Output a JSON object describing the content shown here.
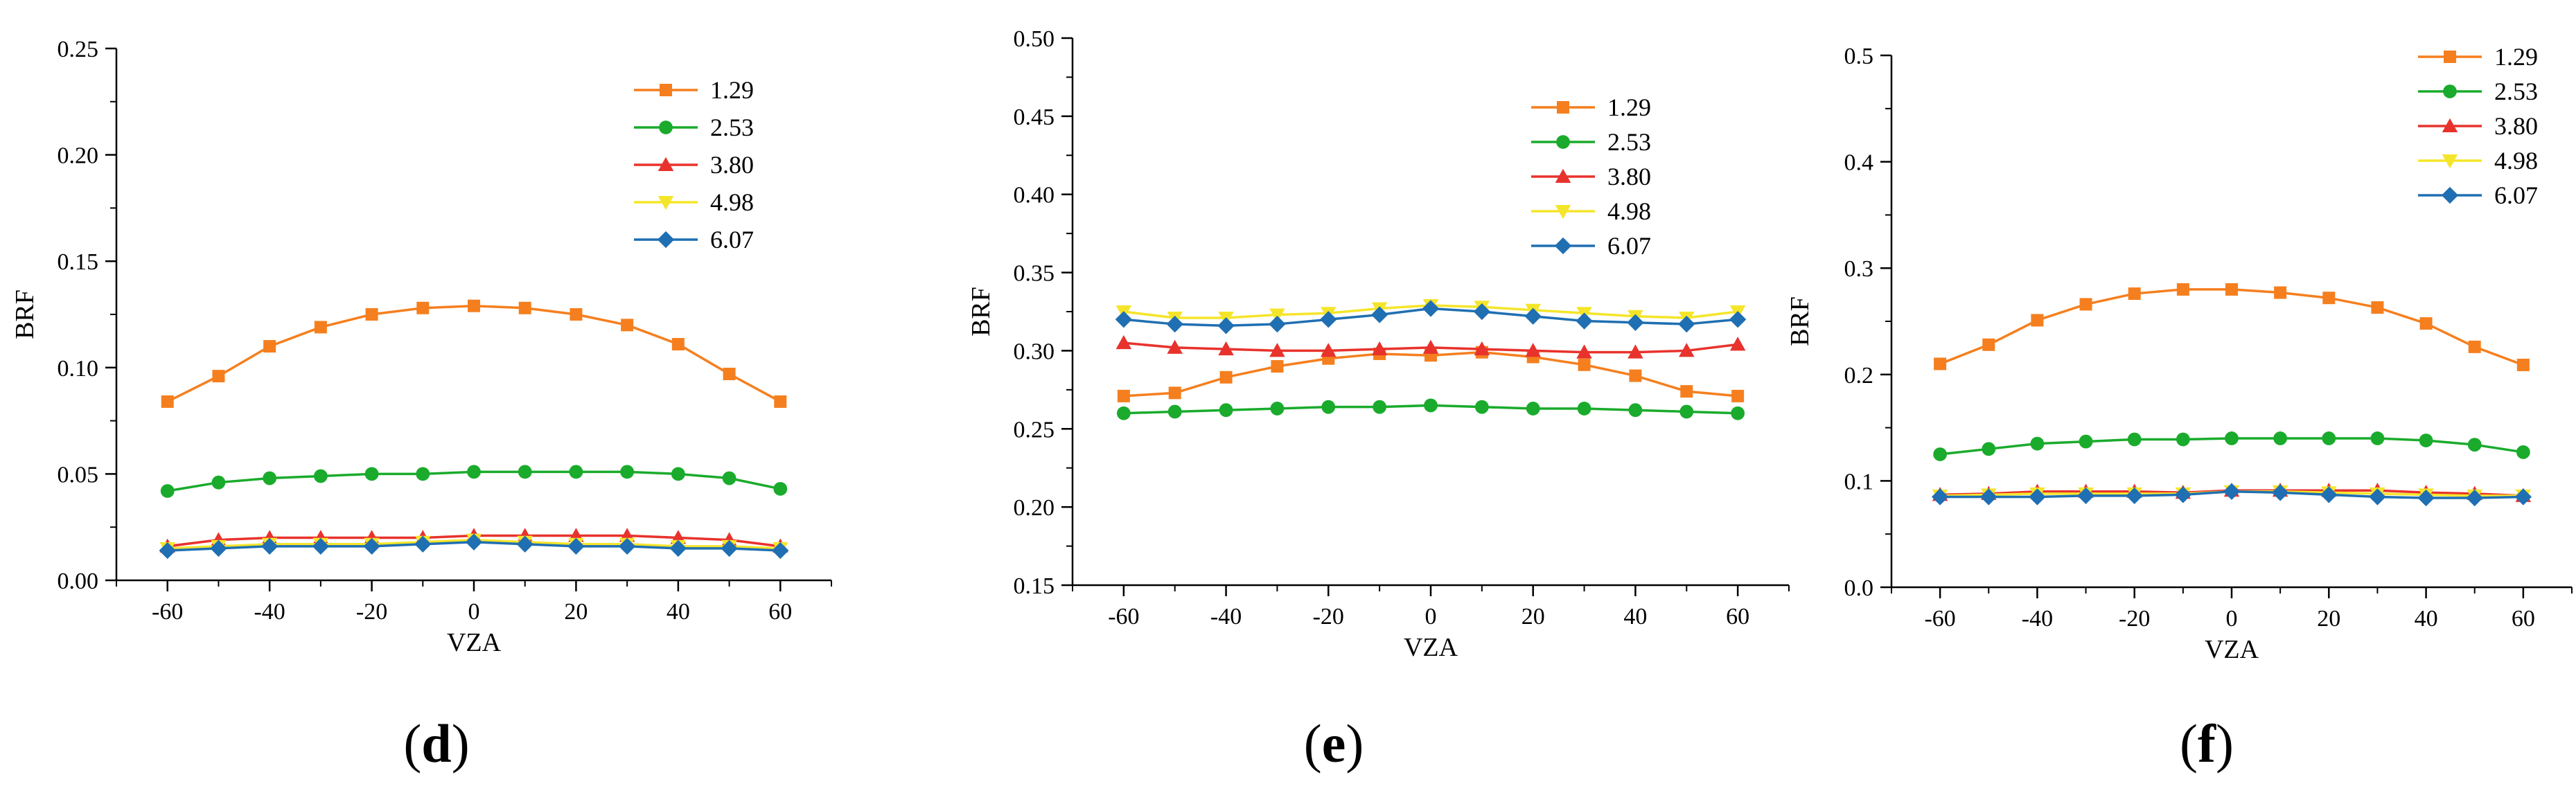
{
  "chart_data": [
    {
      "type": "line",
      "panel_label": "d",
      "xlabel": "VZA",
      "ylabel": "BRF",
      "xlim": [
        -70,
        70
      ],
      "ylim": [
        0,
        0.25
      ],
      "x": [
        -60,
        -50,
        -40,
        -30,
        -20,
        -10,
        0,
        10,
        20,
        30,
        40,
        50,
        60
      ],
      "xticks": [
        -60,
        -40,
        -20,
        0,
        20,
        40,
        60
      ],
      "yticks": [
        "0.00",
        "0.05",
        "0.10",
        "0.15",
        "0.20",
        "0.25"
      ],
      "legend_position": "top-right",
      "series": [
        {
          "name": "1.29",
          "color": "#f57f1e",
          "marker": "square",
          "values": [
            0.084,
            0.096,
            0.11,
            0.119,
            0.125,
            0.128,
            0.129,
            0.128,
            0.125,
            0.12,
            0.111,
            0.097,
            0.084
          ]
        },
        {
          "name": "2.53",
          "color": "#1aab2c",
          "marker": "circle",
          "values": [
            0.042,
            0.046,
            0.048,
            0.049,
            0.05,
            0.05,
            0.051,
            0.051,
            0.051,
            0.051,
            0.05,
            0.048,
            0.043
          ]
        },
        {
          "name": "3.80",
          "color": "#e8322c",
          "marker": "triangle-up",
          "values": [
            0.016,
            0.019,
            0.02,
            0.02,
            0.02,
            0.02,
            0.021,
            0.021,
            0.021,
            0.021,
            0.02,
            0.019,
            0.016
          ]
        },
        {
          "name": "4.98",
          "color": "#f5e52a",
          "marker": "triangle-down",
          "values": [
            0.015,
            0.016,
            0.017,
            0.017,
            0.017,
            0.018,
            0.019,
            0.018,
            0.017,
            0.017,
            0.016,
            0.016,
            0.015
          ]
        },
        {
          "name": "6.07",
          "color": "#1f6fb2",
          "marker": "diamond",
          "values": [
            0.014,
            0.015,
            0.016,
            0.016,
            0.016,
            0.017,
            0.018,
            0.017,
            0.016,
            0.016,
            0.015,
            0.015,
            0.014
          ]
        }
      ]
    },
    {
      "type": "line",
      "panel_label": "e",
      "xlabel": "VZA",
      "ylabel": "BRF",
      "xlim": [
        -70,
        70
      ],
      "ylim": [
        0.15,
        0.5
      ],
      "x": [
        -60,
        -50,
        -40,
        -30,
        -20,
        -10,
        0,
        10,
        20,
        30,
        40,
        50,
        60
      ],
      "xticks": [
        -60,
        -40,
        -20,
        0,
        20,
        40,
        60
      ],
      "yticks": [
        "0.15",
        "0.20",
        "0.25",
        "0.30",
        "0.35",
        "0.40",
        "0.45",
        "0.50"
      ],
      "legend_position": "top-right",
      "series": [
        {
          "name": "1.29",
          "color": "#f57f1e",
          "marker": "square",
          "values": [
            0.271,
            0.273,
            0.283,
            0.29,
            0.295,
            0.298,
            0.297,
            0.299,
            0.296,
            0.291,
            0.284,
            0.274,
            0.271
          ]
        },
        {
          "name": "2.53",
          "color": "#1aab2c",
          "marker": "circle",
          "values": [
            0.26,
            0.261,
            0.262,
            0.263,
            0.264,
            0.264,
            0.265,
            0.264,
            0.263,
            0.263,
            0.262,
            0.261,
            0.26
          ]
        },
        {
          "name": "3.80",
          "color": "#e8322c",
          "marker": "triangle-up",
          "values": [
            0.305,
            0.302,
            0.301,
            0.3,
            0.3,
            0.301,
            0.302,
            0.301,
            0.3,
            0.299,
            0.299,
            0.3,
            0.304
          ]
        },
        {
          "name": "4.98",
          "color": "#f5e52a",
          "marker": "triangle-down",
          "values": [
            0.325,
            0.321,
            0.321,
            0.323,
            0.324,
            0.327,
            0.329,
            0.328,
            0.326,
            0.324,
            0.322,
            0.321,
            0.325
          ]
        },
        {
          "name": "6.07",
          "color": "#1f6fb2",
          "marker": "diamond",
          "values": [
            0.32,
            0.317,
            0.316,
            0.317,
            0.32,
            0.323,
            0.327,
            0.325,
            0.322,
            0.319,
            0.318,
            0.317,
            0.32
          ]
        }
      ]
    },
    {
      "type": "line",
      "panel_label": "f",
      "xlabel": "VZA",
      "ylabel": "BRF",
      "xlim": [
        -70,
        70
      ],
      "ylim": [
        0,
        0.5
      ],
      "x": [
        -60,
        -50,
        -40,
        -30,
        -20,
        -10,
        0,
        10,
        20,
        30,
        40,
        50,
        60
      ],
      "xticks": [
        -60,
        -40,
        -20,
        0,
        20,
        40,
        60
      ],
      "yticks": [
        "0.0",
        "0.1",
        "0.2",
        "0.3",
        "0.4",
        "0.5"
      ],
      "legend_position": "top-right",
      "series": [
        {
          "name": "1.29",
          "color": "#f57f1e",
          "marker": "square",
          "values": [
            0.21,
            0.228,
            0.251,
            0.266,
            0.276,
            0.28,
            0.28,
            0.277,
            0.272,
            0.263,
            0.248,
            0.226,
            0.209
          ]
        },
        {
          "name": "2.53",
          "color": "#1aab2c",
          "marker": "circle",
          "values": [
            0.125,
            0.13,
            0.135,
            0.137,
            0.139,
            0.139,
            0.14,
            0.14,
            0.14,
            0.14,
            0.138,
            0.134,
            0.127
          ]
        },
        {
          "name": "3.80",
          "color": "#e8322c",
          "marker": "triangle-up",
          "values": [
            0.087,
            0.088,
            0.09,
            0.09,
            0.09,
            0.089,
            0.091,
            0.091,
            0.091,
            0.091,
            0.089,
            0.088,
            0.086
          ]
        },
        {
          "name": "4.98",
          "color": "#f5e52a",
          "marker": "triangle-down",
          "values": [
            0.086,
            0.087,
            0.088,
            0.088,
            0.088,
            0.088,
            0.09,
            0.09,
            0.089,
            0.088,
            0.087,
            0.086,
            0.086
          ]
        },
        {
          "name": "6.07",
          "color": "#1f6fb2",
          "marker": "diamond",
          "values": [
            0.085,
            0.085,
            0.085,
            0.086,
            0.086,
            0.087,
            0.09,
            0.089,
            0.087,
            0.085,
            0.084,
            0.084,
            0.085
          ]
        }
      ]
    }
  ]
}
